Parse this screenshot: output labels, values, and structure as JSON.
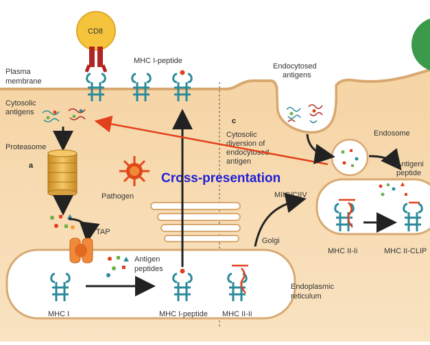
{
  "labels": {
    "cd8": "CD8",
    "mhc1_peptide_top": "MHC I-peptide",
    "plasma_membrane_1": "Plasma",
    "plasma_membrane_2": "membrane",
    "cytosolic_antigens_1": "Cytosolic",
    "cytosolic_antigens_2": "antigens",
    "proteasome": "Proteasome",
    "panel_a": "a",
    "pathogen": "Pathogen",
    "tap": "TAP",
    "antigen_peptides_1": "Antigen",
    "antigen_peptides_2": "peptides",
    "mhc1": "MHC I",
    "mhc1_peptide_bottom": "MHC I-peptide",
    "panel_c": "c",
    "cytosolic_diversion_1": "Cytosolic",
    "cytosolic_diversion_2": "diversion of",
    "cytosolic_diversion_3": "endocytosed",
    "cytosolic_diversion_4": "antigen",
    "cross_presentation": "Cross-presentation",
    "endocytosed_antigens_1": "Endocytosed",
    "endocytosed_antigens_2": "antigens",
    "endosome": "Endosome",
    "antigenic_peptides_1": "Antigeni",
    "antigenic_peptides_2": "peptide",
    "miic_ciiv": "MIIC/CIIV",
    "golgi": "Golgi",
    "mhc2_ii": "MHC II-Ii",
    "mhc2_clip": "MHC II-CLIP",
    "er_1": "Endoplasmic",
    "er_2": "reticulum",
    "mhc2_ii_bottom": "MHC II-Ii"
  },
  "colors": {
    "cytoplasm": "#f7d9ad",
    "membrane": "#e8b97f",
    "receptor": "#2a8a99",
    "cd8": "#f6c43c",
    "tcr": "#b02424",
    "arrow_red": "#e2401b",
    "pathogen": "#e0481a",
    "proteasome": "#e2a83a",
    "tap": "#f08a3a",
    "cross_presentation": "#1f1fd6"
  }
}
